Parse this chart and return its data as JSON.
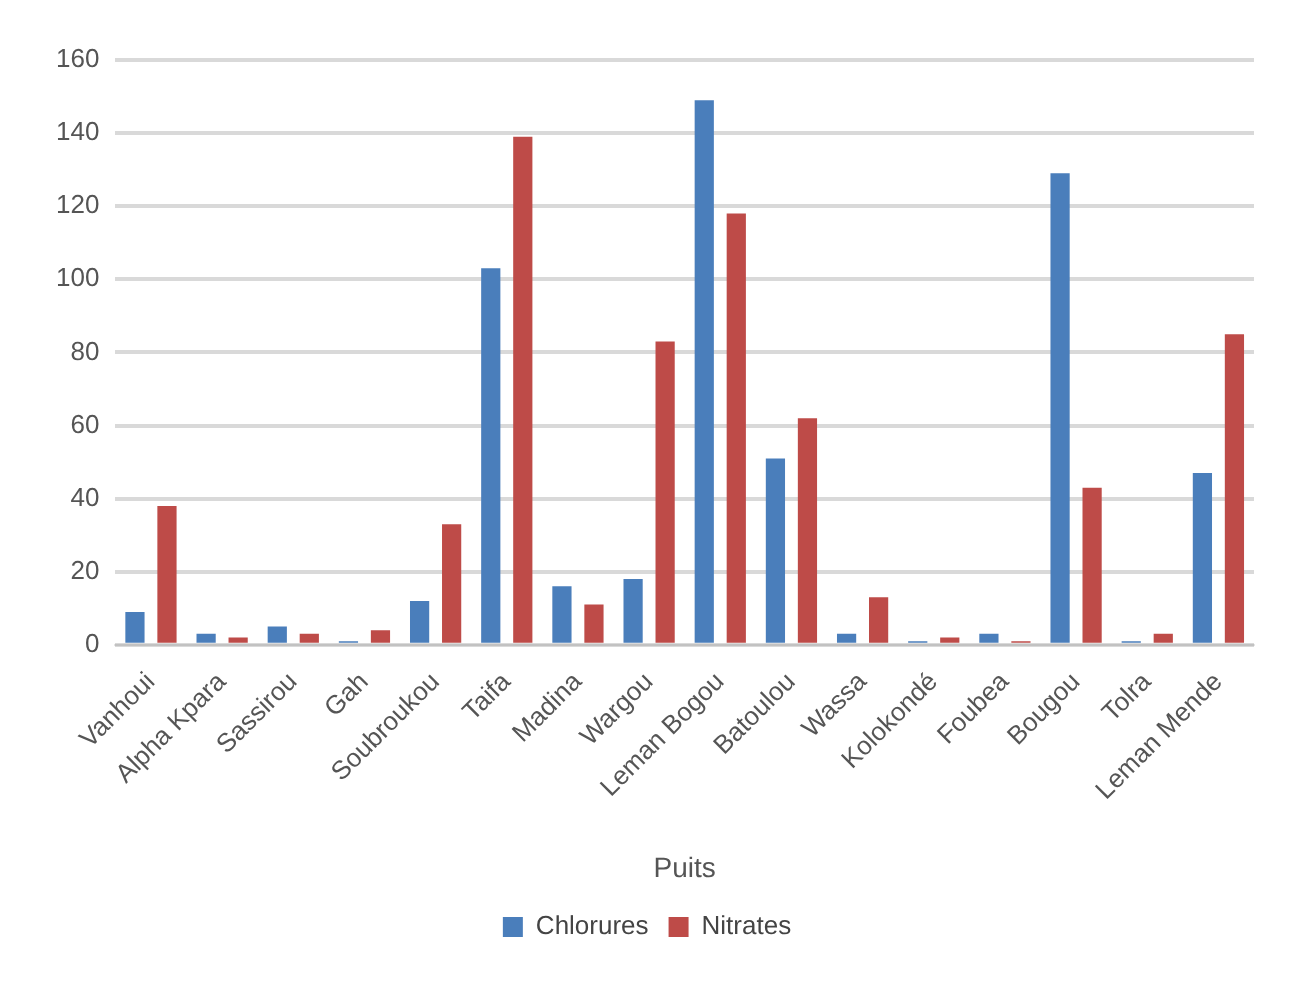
{
  "chart_data": {
    "type": "bar",
    "xlabel": "Puits",
    "categories": [
      "Vanhoui",
      "Alpha Kpara",
      "Sassirou",
      "Gah",
      "Soubroukou",
      "Taifa",
      "Madina",
      "Wargou",
      "Leman Bogou",
      "Batoulou",
      "Wassa",
      "Kolokondé",
      "Foubea",
      "Bougou",
      "Tolra",
      "Leman Mende"
    ],
    "series": [
      {
        "name": "Chlorures",
        "color": "#4a7ebb",
        "values": [
          9,
          3,
          5,
          1,
          12,
          103,
          16,
          18,
          149,
          51,
          3,
          1,
          3,
          129,
          1,
          47
        ]
      },
      {
        "name": "Nitrates",
        "color": "#be4b48",
        "values": [
          38,
          2,
          3,
          4,
          33,
          139,
          11,
          83,
          118,
          62,
          13,
          2,
          1,
          43,
          3,
          85
        ]
      }
    ],
    "ylim": [
      0,
      160
    ],
    "yticks": [
      0,
      20,
      40,
      60,
      80,
      100,
      120,
      140,
      160
    ],
    "grid": "y",
    "legend": "bottom"
  }
}
